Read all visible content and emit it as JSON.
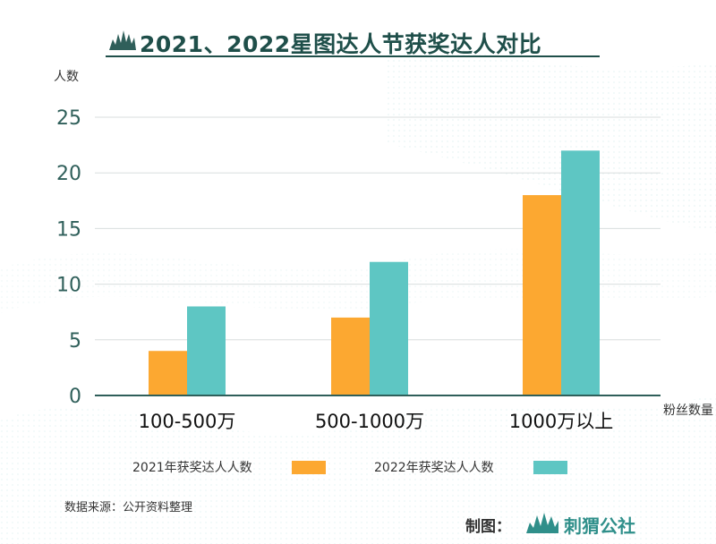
{
  "header": {
    "title": "2021、2022星图达人节获奖达人对比"
  },
  "chart_data": {
    "type": "bar",
    "title": "2021、2022星图达人节获奖达人对比",
    "ylabel": "人数",
    "xlabel": "粉丝数量",
    "categories": [
      "100-500万",
      "500-1000万",
      "1000万以上"
    ],
    "series": [
      {
        "name": "2021年获奖达人人数",
        "values": [
          4,
          7,
          18
        ],
        "color": "#fca831"
      },
      {
        "name": "2022年获奖达人人数",
        "values": [
          8,
          12,
          22
        ],
        "color": "#5ec6c3"
      }
    ],
    "ylim": [
      0,
      25
    ],
    "yticks": [
      "0",
      "5",
      "10",
      "15",
      "20",
      "25"
    ],
    "grid": true,
    "legend": "bottom"
  },
  "footer": {
    "source": "数据来源：公开资料整理",
    "credit_label": "制图：",
    "credit_brand": "刺猬公社"
  },
  "colors": {
    "title": "#1f4f4a",
    "axis": "#2f5f5a",
    "brand": "#2f8f8a"
  }
}
